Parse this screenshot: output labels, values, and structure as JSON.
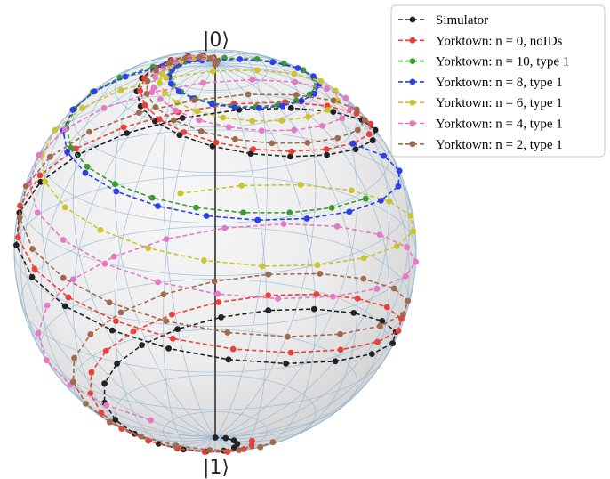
{
  "chart_data": {
    "type": "scatter",
    "title": "",
    "poles": {
      "top": "|0⟩",
      "bottom": "|1⟩"
    },
    "legend": {
      "placement": "top-right",
      "entries": [
        "Simulator",
        "Yorktown: n = 0, noIDs",
        "Yorktown: n = 10, type 1",
        "Yorktown: n = 8, type 1",
        "Yorktown: n = 6, type 1",
        "Yorktown: n = 4, type 1",
        "Yorktown: n = 2, type 1"
      ]
    },
    "series": [
      {
        "name": "Simulator",
        "color": "#222222",
        "turns": 2.85,
        "theta_end": 180,
        "phi_start": 60,
        "n_points": 60
      },
      {
        "name": "Yorktown: n = 0, noIDs",
        "color": "#e8403a",
        "turns": 2.75,
        "theta_end": 168,
        "phi_start": 62,
        "n_points": 58
      },
      {
        "name": "Yorktown: n = 10, type 1",
        "color": "#3a9a34",
        "turns": 1.75,
        "theta_end": 62,
        "phi_start": 58,
        "n_points": 40
      },
      {
        "name": "Yorktown: n = 8, type 1",
        "color": "#2b3ee8",
        "turns": 1.95,
        "theta_end": 72,
        "phi_start": 62,
        "n_points": 42
      },
      {
        "name": "Yorktown: n = 6, type 1",
        "color": "#c9c430",
        "turns": 2.1,
        "theta_end": 95,
        "phi_start": 64,
        "n_points": 44
      },
      {
        "name": "Yorktown: n = 4, type 1",
        "color": "#e47ac4",
        "turns": 2.5,
        "theta_end": 128,
        "phi_start": 66,
        "n_points": 52
      },
      {
        "name": "Yorktown: n = 2, type 1",
        "color": "#a06a4e",
        "turns": 2.7,
        "theta_end": 158,
        "phi_start": 68,
        "n_points": 56
      }
    ]
  }
}
